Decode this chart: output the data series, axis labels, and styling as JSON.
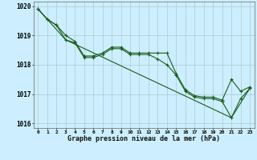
{
  "title": "Graphe pression niveau de la mer (hPa)",
  "bg_color": "#cceeff",
  "grid_color": "#aacccc",
  "line_color": "#1a5c1a",
  "marker_color": "#1a5c1a",
  "xlim": [
    -0.5,
    23.5
  ],
  "ylim": [
    1015.85,
    1020.15
  ],
  "yticks": [
    1016,
    1017,
    1018,
    1019,
    1020
  ],
  "xtick_labels": [
    "0",
    "1",
    "2",
    "3",
    "4",
    "5",
    "6",
    "7",
    "8",
    "9",
    "10",
    "11",
    "12",
    "13",
    "14",
    "15",
    "16",
    "17",
    "18",
    "19",
    "20",
    "21",
    "22",
    "23"
  ],
  "series1_x": [
    0,
    1,
    2,
    3,
    4,
    5,
    6,
    7,
    8,
    9,
    10,
    11,
    12,
    13,
    14,
    15,
    16,
    17,
    18,
    19,
    20,
    21,
    22,
    23
  ],
  "series1_y": [
    1019.9,
    1019.55,
    1019.35,
    1018.85,
    1018.75,
    1018.25,
    1018.25,
    1018.35,
    1018.55,
    1018.55,
    1018.35,
    1018.35,
    1018.35,
    1018.2,
    1018.0,
    1017.65,
    1017.1,
    1016.9,
    1016.85,
    1016.85,
    1016.75,
    1016.2,
    1016.85,
    1017.2
  ],
  "series2_x": [
    0,
    1,
    2,
    3,
    4,
    5,
    6,
    7,
    8,
    9,
    10,
    11,
    12,
    13,
    14,
    15,
    16,
    17,
    18,
    19,
    20,
    21,
    22,
    23
  ],
  "series2_y": [
    1019.9,
    1019.55,
    1019.35,
    1019.0,
    1018.8,
    1018.3,
    1018.3,
    1018.4,
    1018.6,
    1018.6,
    1018.4,
    1018.4,
    1018.4,
    1018.4,
    1018.4,
    1017.7,
    1017.15,
    1016.95,
    1016.9,
    1016.9,
    1016.8,
    1017.5,
    1017.1,
    1017.25
  ],
  "series3_x": [
    0,
    3,
    21,
    23
  ],
  "series3_y": [
    1019.9,
    1018.85,
    1016.2,
    1017.2
  ]
}
